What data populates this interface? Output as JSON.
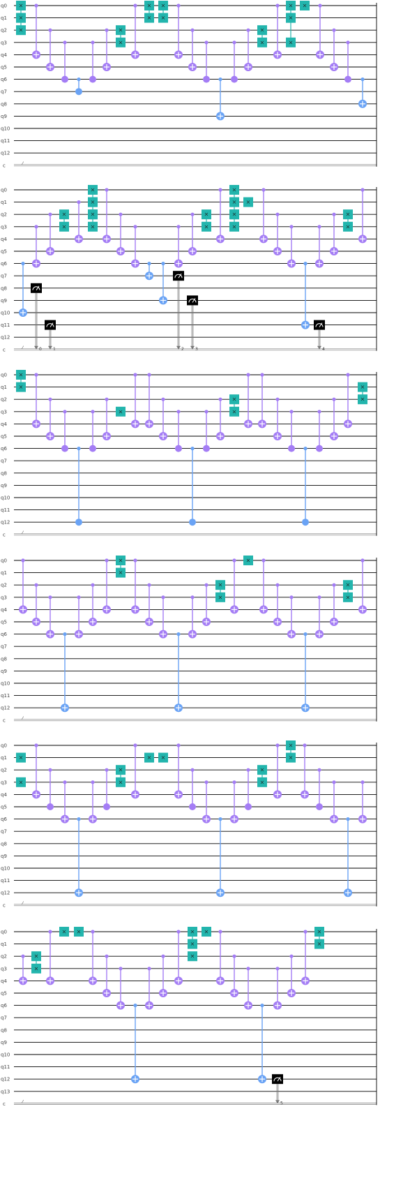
{
  "colors": {
    "wire": "#000000",
    "control": "#a47df5",
    "target_fill": "#a47df5",
    "cx_long": "#6aa3f5",
    "swap_fill": "#23b5ad",
    "measure_fill": "#000000",
    "classical_wire": "#777777",
    "background": "#ffffff"
  },
  "glyphs": {
    "swap_mark": "×",
    "measure_mark": "⌒",
    "creg_tick": "⁄"
  },
  "panels": [
    {
      "qubit_labels": [
        "q0",
        "q1",
        "q2",
        "q3",
        "q4",
        "q5",
        "q6",
        "q7",
        "q8",
        "q9",
        "q10",
        "q11",
        "q12"
      ],
      "creg_label": "c",
      "gates": [
        {
          "t": "swap",
          "x": 30,
          "a": 0,
          "b": 1
        },
        {
          "t": "swap",
          "x": 30,
          "a": 1,
          "b": 2
        },
        {
          "t": "cx",
          "x": 52,
          "c": 0,
          "tg": 4
        },
        {
          "t": "cx",
          "x": 72,
          "c": 2,
          "tg": 5
        },
        {
          "t": "cz",
          "x": 93,
          "c": 3,
          "tg": 6
        },
        {
          "t": "cz",
          "x": 113,
          "c": 6,
          "tg": 7,
          "long": true
        },
        {
          "t": "cz",
          "x": 133,
          "c": 3,
          "tg": 6
        },
        {
          "t": "cx",
          "x": 153,
          "c": 2,
          "tg": 5
        },
        {
          "t": "swap",
          "x": 173,
          "a": 2,
          "b": 3
        },
        {
          "t": "cx",
          "x": 194,
          "c": 0,
          "tg": 4
        },
        {
          "t": "swap",
          "x": 214,
          "a": 0,
          "b": 1
        },
        {
          "t": "swap",
          "x": 234,
          "a": 0,
          "b": 1
        },
        {
          "t": "cx",
          "x": 256,
          "c": 0,
          "tg": 4
        },
        {
          "t": "cx",
          "x": 276,
          "c": 2,
          "tg": 5
        },
        {
          "t": "cz",
          "x": 296,
          "c": 3,
          "tg": 6
        },
        {
          "t": "cx",
          "x": 316,
          "c": 6,
          "tg": 9,
          "long": true
        },
        {
          "t": "cz",
          "x": 336,
          "c": 3,
          "tg": 6
        },
        {
          "t": "cx",
          "x": 356,
          "c": 2,
          "tg": 5
        },
        {
          "t": "swap",
          "x": 376,
          "a": 2,
          "b": 3
        },
        {
          "t": "cx",
          "x": 398,
          "c": 0,
          "tg": 4
        },
        {
          "t": "swap",
          "x": 417,
          "a": 0,
          "b": 1
        },
        {
          "t": "swap",
          "x": 417,
          "a": 1,
          "b": 3
        },
        {
          "t": "swap",
          "x": 437,
          "a": 0,
          "b": 0
        },
        {
          "t": "cx",
          "x": 459,
          "c": 0,
          "tg": 4
        },
        {
          "t": "cx",
          "x": 479,
          "c": 2,
          "tg": 5
        },
        {
          "t": "cz",
          "x": 499,
          "c": 3,
          "tg": 6
        },
        {
          "t": "cx",
          "x": 520,
          "c": 6,
          "tg": 8,
          "long": true
        }
      ]
    },
    {
      "qubit_labels": [
        "q0",
        "q1",
        "q2",
        "q3",
        "q4",
        "q5",
        "q6",
        "q7",
        "q8",
        "q9",
        "q10",
        "q11",
        "q12"
      ],
      "creg_label": "c",
      "gates": [
        {
          "t": "cx",
          "x": 33,
          "c": 6,
          "tg": 10,
          "long": true
        },
        {
          "t": "cx",
          "x": 52,
          "c": 3,
          "tg": 6
        },
        {
          "t": "measure",
          "x": 52,
          "q": 8,
          "bit": "0"
        },
        {
          "t": "cx",
          "x": 72,
          "c": 2,
          "tg": 5
        },
        {
          "t": "measure",
          "x": 72,
          "q": 11,
          "bit": "1"
        },
        {
          "t": "swap",
          "x": 92,
          "a": 2,
          "b": 3
        },
        {
          "t": "cx",
          "x": 113,
          "c": 1,
          "tg": 4
        },
        {
          "t": "swap",
          "x": 133,
          "a": 0,
          "b": 1
        },
        {
          "t": "swap",
          "x": 133,
          "a": 1,
          "b": 2
        },
        {
          "t": "swap",
          "x": 133,
          "a": 2,
          "b": 3
        },
        {
          "t": "cx",
          "x": 153,
          "c": 0,
          "tg": 4
        },
        {
          "t": "cx",
          "x": 173,
          "c": 2,
          "tg": 5
        },
        {
          "t": "cx",
          "x": 194,
          "c": 3,
          "tg": 6
        },
        {
          "t": "cx",
          "x": 214,
          "c": 6,
          "tg": 7,
          "long": true
        },
        {
          "t": "cx",
          "x": 234,
          "c": 6,
          "tg": 9,
          "long": true
        },
        {
          "t": "cx",
          "x": 256,
          "c": 3,
          "tg": 6
        },
        {
          "t": "measure",
          "x": 256,
          "q": 7,
          "bit": "2"
        },
        {
          "t": "cx",
          "x": 276,
          "c": 2,
          "tg": 5
        },
        {
          "t": "measure",
          "x": 276,
          "q": 9,
          "bit": "3"
        },
        {
          "t": "swap",
          "x": 296,
          "a": 2,
          "b": 3
        },
        {
          "t": "cx",
          "x": 316,
          "c": 0,
          "tg": 4
        },
        {
          "t": "swap",
          "x": 336,
          "a": 0,
          "b": 1
        },
        {
          "t": "swap",
          "x": 336,
          "a": 1,
          "b": 2
        },
        {
          "t": "swap",
          "x": 336,
          "a": 2,
          "b": 3
        },
        {
          "t": "swap",
          "x": 356,
          "a": 1,
          "b": 1
        },
        {
          "t": "cx",
          "x": 378,
          "c": 0,
          "tg": 4
        },
        {
          "t": "cx",
          "x": 398,
          "c": 2,
          "tg": 5
        },
        {
          "t": "cx",
          "x": 418,
          "c": 3,
          "tg": 6
        },
        {
          "t": "cx",
          "x": 438,
          "c": 6,
          "tg": 11,
          "long": true
        },
        {
          "t": "measure",
          "x": 458,
          "q": 11,
          "bit": "4"
        },
        {
          "t": "cx",
          "x": 458,
          "c": 3,
          "tg": 6
        },
        {
          "t": "cx",
          "x": 479,
          "c": 2,
          "tg": 5
        },
        {
          "t": "swap",
          "x": 499,
          "a": 2,
          "b": 3
        },
        {
          "t": "cx",
          "x": 520,
          "c": 0,
          "tg": 4
        }
      ]
    },
    {
      "qubit_labels": [
        "q0",
        "q1",
        "q2",
        "q3",
        "q4",
        "q5",
        "q6",
        "q7",
        "q8",
        "q9",
        "q10",
        "q11",
        "q12"
      ],
      "creg_label": "c",
      "gates": [
        {
          "t": "swap",
          "x": 30,
          "a": 0,
          "b": 1
        },
        {
          "t": "cx",
          "x": 52,
          "c": 0,
          "tg": 4
        },
        {
          "t": "cx",
          "x": 72,
          "c": 2,
          "tg": 5
        },
        {
          "t": "cz",
          "x": 93,
          "c": 3,
          "tg": 6
        },
        {
          "t": "cz",
          "x": 113,
          "c": 6,
          "tg": 12,
          "long": true
        },
        {
          "t": "cz",
          "x": 133,
          "c": 3,
          "tg": 6
        },
        {
          "t": "cx",
          "x": 153,
          "c": 2,
          "tg": 5
        },
        {
          "t": "swap",
          "x": 173,
          "a": 3,
          "b": 3
        },
        {
          "t": "cx",
          "x": 194,
          "c": 0,
          "tg": 4
        },
        {
          "t": "cx",
          "x": 214,
          "c": 0,
          "tg": 4
        },
        {
          "t": "cx",
          "x": 234,
          "c": 2,
          "tg": 5
        },
        {
          "t": "cz",
          "x": 256,
          "c": 3,
          "tg": 6
        },
        {
          "t": "cz",
          "x": 276,
          "c": 6,
          "tg": 12,
          "long": true
        },
        {
          "t": "cz",
          "x": 296,
          "c": 3,
          "tg": 6
        },
        {
          "t": "cx",
          "x": 316,
          "c": 2,
          "tg": 5
        },
        {
          "t": "swap",
          "x": 336,
          "a": 2,
          "b": 3
        },
        {
          "t": "cx",
          "x": 356,
          "c": 0,
          "tg": 4
        },
        {
          "t": "cx",
          "x": 376,
          "c": 0,
          "tg": 4
        },
        {
          "t": "cx",
          "x": 398,
          "c": 2,
          "tg": 5
        },
        {
          "t": "cz",
          "x": 418,
          "c": 3,
          "tg": 6
        },
        {
          "t": "cz",
          "x": 438,
          "c": 6,
          "tg": 12,
          "long": true
        },
        {
          "t": "cz",
          "x": 458,
          "c": 3,
          "tg": 6
        },
        {
          "t": "cx",
          "x": 479,
          "c": 2,
          "tg": 5
        },
        {
          "t": "cx",
          "x": 499,
          "c": 0,
          "tg": 4
        },
        {
          "t": "swap",
          "x": 520,
          "a": 1,
          "b": 2
        }
      ]
    },
    {
      "qubit_labels": [
        "q0",
        "q1",
        "q2",
        "q3",
        "q4",
        "q5",
        "q6",
        "q7",
        "q8",
        "q9",
        "q10",
        "q11",
        "q12"
      ],
      "creg_label": "c",
      "gates": [
        {
          "t": "cx",
          "x": 33,
          "c": 0,
          "tg": 4
        },
        {
          "t": "cx",
          "x": 52,
          "c": 2,
          "tg": 5
        },
        {
          "t": "cx",
          "x": 72,
          "c": 3,
          "tg": 6
        },
        {
          "t": "cx",
          "x": 93,
          "c": 6,
          "tg": 12,
          "long": true
        },
        {
          "t": "cx",
          "x": 113,
          "c": 3,
          "tg": 6
        },
        {
          "t": "cx",
          "x": 133,
          "c": 2,
          "tg": 5
        },
        {
          "t": "cx",
          "x": 153,
          "c": 0,
          "tg": 4
        },
        {
          "t": "swap",
          "x": 173,
          "a": 0,
          "b": 1
        },
        {
          "t": "cx",
          "x": 194,
          "c": 0,
          "tg": 4
        },
        {
          "t": "cx",
          "x": 214,
          "c": 2,
          "tg": 5
        },
        {
          "t": "cx",
          "x": 234,
          "c": 3,
          "tg": 6
        },
        {
          "t": "cx",
          "x": 256,
          "c": 6,
          "tg": 12,
          "long": true
        },
        {
          "t": "cx",
          "x": 276,
          "c": 3,
          "tg": 6
        },
        {
          "t": "cx",
          "x": 296,
          "c": 2,
          "tg": 5
        },
        {
          "t": "swap",
          "x": 316,
          "a": 2,
          "b": 3
        },
        {
          "t": "cx",
          "x": 336,
          "c": 0,
          "tg": 4
        },
        {
          "t": "swap",
          "x": 356,
          "a": 0,
          "b": 0
        },
        {
          "t": "cx",
          "x": 378,
          "c": 0,
          "tg": 4
        },
        {
          "t": "cx",
          "x": 398,
          "c": 2,
          "tg": 5
        },
        {
          "t": "cx",
          "x": 418,
          "c": 3,
          "tg": 6
        },
        {
          "t": "cx",
          "x": 438,
          "c": 6,
          "tg": 12,
          "long": true
        },
        {
          "t": "cx",
          "x": 458,
          "c": 3,
          "tg": 6
        },
        {
          "t": "cx",
          "x": 479,
          "c": 2,
          "tg": 5
        },
        {
          "t": "swap",
          "x": 499,
          "a": 2,
          "b": 3
        },
        {
          "t": "cx",
          "x": 520,
          "c": 0,
          "tg": 4
        }
      ]
    },
    {
      "qubit_labels": [
        "q0",
        "q1",
        "q2",
        "q3",
        "q4",
        "q5",
        "q6",
        "q7",
        "q8",
        "q9",
        "q10",
        "q11",
        "q12"
      ],
      "creg_label": "c",
      "gates": [
        {
          "t": "swap",
          "x": 30,
          "a": 1,
          "b": 1
        },
        {
          "t": "swap",
          "x": 30,
          "a": 3,
          "b": 3
        },
        {
          "t": "cx",
          "x": 52,
          "c": 0,
          "tg": 4
        },
        {
          "t": "cz",
          "x": 72,
          "c": 2,
          "tg": 5
        },
        {
          "t": "cx",
          "x": 93,
          "c": 3,
          "tg": 6
        },
        {
          "t": "cx",
          "x": 113,
          "c": 6,
          "tg": 12,
          "long": true
        },
        {
          "t": "cx",
          "x": 133,
          "c": 3,
          "tg": 6
        },
        {
          "t": "cz",
          "x": 153,
          "c": 2,
          "tg": 5
        },
        {
          "t": "swap",
          "x": 173,
          "a": 2,
          "b": 3
        },
        {
          "t": "cx",
          "x": 194,
          "c": 0,
          "tg": 4
        },
        {
          "t": "swap",
          "x": 214,
          "a": 1,
          "b": 1
        },
        {
          "t": "swap",
          "x": 234,
          "a": 1,
          "b": 1
        },
        {
          "t": "cx",
          "x": 256,
          "c": 0,
          "tg": 4
        },
        {
          "t": "cz",
          "x": 276,
          "c": 2,
          "tg": 5
        },
        {
          "t": "cx",
          "x": 296,
          "c": 3,
          "tg": 6
        },
        {
          "t": "cx",
          "x": 316,
          "c": 6,
          "tg": 12,
          "long": true
        },
        {
          "t": "cx",
          "x": 336,
          "c": 3,
          "tg": 6
        },
        {
          "t": "cz",
          "x": 356,
          "c": 2,
          "tg": 5
        },
        {
          "t": "swap",
          "x": 376,
          "a": 2,
          "b": 3
        },
        {
          "t": "cx",
          "x": 398,
          "c": 0,
          "tg": 4
        },
        {
          "t": "swap",
          "x": 417,
          "a": 0,
          "b": 1
        },
        {
          "t": "cx",
          "x": 437,
          "c": 0,
          "tg": 4
        },
        {
          "t": "cz",
          "x": 458,
          "c": 2,
          "tg": 5
        },
        {
          "t": "cx",
          "x": 479,
          "c": 3,
          "tg": 6
        },
        {
          "t": "cx",
          "x": 499,
          "c": 6,
          "tg": 12,
          "long": true
        },
        {
          "t": "cx",
          "x": 520,
          "c": 3,
          "tg": 6
        }
      ]
    },
    {
      "qubit_labels": [
        "q0",
        "q1",
        "q2",
        "q3",
        "q4",
        "q5",
        "q6",
        "q7",
        "q8",
        "q9",
        "q10",
        "q11",
        "q12",
        "q13"
      ],
      "creg_label": "c",
      "gates": [
        {
          "t": "cx",
          "x": 33,
          "c": 2,
          "tg": 4
        },
        {
          "t": "swap",
          "x": 52,
          "a": 2,
          "b": 3
        },
        {
          "t": "cx",
          "x": 72,
          "c": 0,
          "tg": 4
        },
        {
          "t": "swap",
          "x": 92,
          "a": 0,
          "b": 0
        },
        {
          "t": "swap",
          "x": 113,
          "a": 0,
          "b": 0
        },
        {
          "t": "cx",
          "x": 133,
          "c": 0,
          "tg": 4
        },
        {
          "t": "cx",
          "x": 153,
          "c": 2,
          "tg": 5
        },
        {
          "t": "cx",
          "x": 173,
          "c": 3,
          "tg": 6
        },
        {
          "t": "cx",
          "x": 194,
          "c": 6,
          "tg": 12,
          "long": true
        },
        {
          "t": "cx",
          "x": 214,
          "c": 3,
          "tg": 6
        },
        {
          "t": "cx",
          "x": 234,
          "c": 2,
          "tg": 5
        },
        {
          "t": "cx",
          "x": 256,
          "c": 0,
          "tg": 4
        },
        {
          "t": "swap",
          "x": 276,
          "a": 0,
          "b": 1
        },
        {
          "t": "swap",
          "x": 276,
          "a": 2,
          "b": 2
        },
        {
          "t": "swap",
          "x": 296,
          "a": 0,
          "b": 0
        },
        {
          "t": "cx",
          "x": 316,
          "c": 0,
          "tg": 4
        },
        {
          "t": "cx",
          "x": 336,
          "c": 2,
          "tg": 5
        },
        {
          "t": "cx",
          "x": 356,
          "c": 3,
          "tg": 6
        },
        {
          "t": "cx",
          "x": 376,
          "c": 6,
          "tg": 12,
          "long": true
        },
        {
          "t": "cx",
          "x": 398,
          "c": 3,
          "tg": 6
        },
        {
          "t": "measure",
          "x": 398,
          "q": 12,
          "bit": "5"
        },
        {
          "t": "cx",
          "x": 418,
          "c": 2,
          "tg": 5
        },
        {
          "t": "cx",
          "x": 438,
          "c": 0,
          "tg": 4
        },
        {
          "t": "swap",
          "x": 458,
          "a": 0,
          "b": 1
        }
      ]
    }
  ]
}
